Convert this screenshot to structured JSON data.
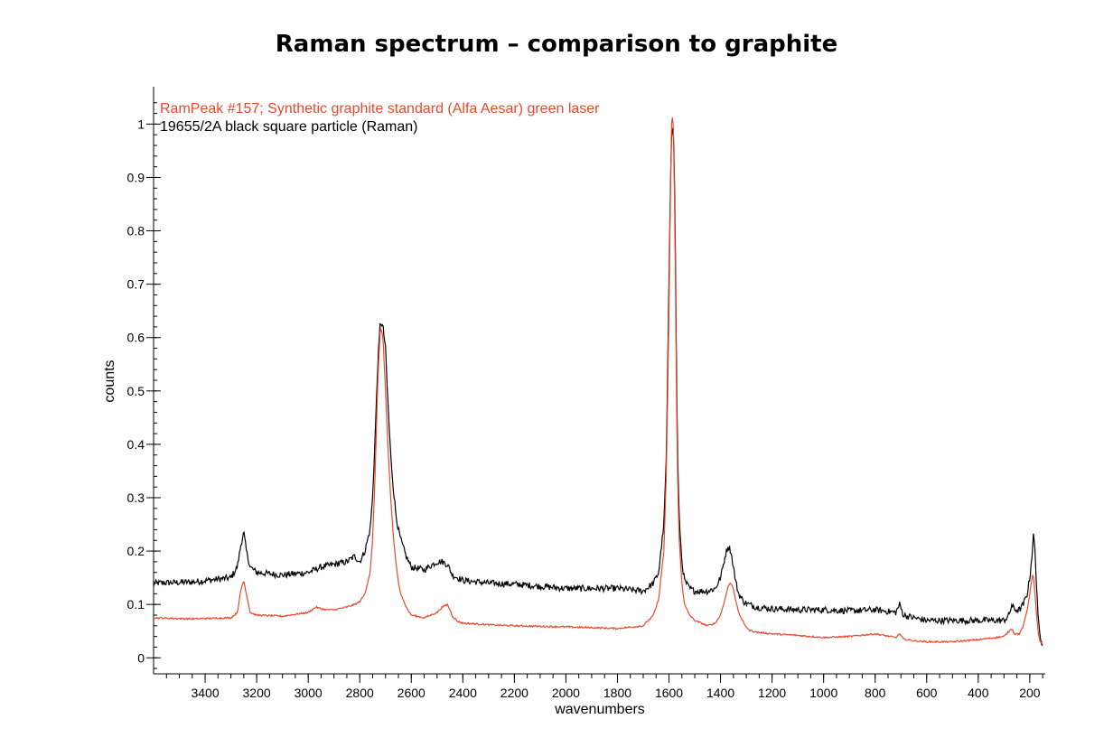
{
  "chart_data": {
    "type": "line",
    "title": "Raman spectrum – comparison to graphite",
    "xlabel": "wavenumbers",
    "ylabel": "counts",
    "x_reversed": true,
    "xlim": [
      3600,
      140
    ],
    "ylim": [
      -0.03,
      1.07
    ],
    "x_ticks": [
      3400,
      3200,
      3000,
      2800,
      2600,
      2400,
      2200,
      2000,
      1800,
      1600,
      1400,
      1200,
      1000,
      800,
      600,
      400,
      200
    ],
    "y_ticks": [
      0,
      0.1,
      0.2,
      0.3,
      0.4,
      0.5,
      0.6,
      0.7,
      0.8,
      0.9,
      1
    ],
    "legend_placement": "top-left",
    "series": [
      {
        "name": "RamPeak #157; Synthetic graphite standard (Alfa Aesar) green laser",
        "color": "#e8492c",
        "x": [
          3600,
          3450,
          3300,
          3275,
          3260,
          3250,
          3240,
          3225,
          3200,
          3100,
          3000,
          2970,
          2950,
          2930,
          2900,
          2850,
          2820,
          2800,
          2780,
          2760,
          2750,
          2740,
          2730,
          2720,
          2710,
          2700,
          2690,
          2680,
          2670,
          2660,
          2650,
          2640,
          2620,
          2600,
          2550,
          2500,
          2480,
          2460,
          2450,
          2440,
          2420,
          2400,
          2300,
          2200,
          2000,
          1800,
          1700,
          1660,
          1640,
          1620,
          1610,
          1600,
          1595,
          1590,
          1585,
          1580,
          1575,
          1570,
          1565,
          1560,
          1550,
          1540,
          1520,
          1500,
          1450,
          1420,
          1400,
          1380,
          1370,
          1360,
          1350,
          1340,
          1330,
          1310,
          1290,
          1260,
          1200,
          1100,
          1000,
          900,
          800,
          720,
          705,
          690,
          650,
          600,
          500,
          400,
          300,
          280,
          270,
          260,
          240,
          225,
          210,
          200,
          190,
          185,
          180,
          175,
          170,
          165,
          160,
          155,
          150
        ],
        "y": [
          0.075,
          0.073,
          0.075,
          0.085,
          0.13,
          0.145,
          0.12,
          0.085,
          0.08,
          0.078,
          0.085,
          0.095,
          0.092,
          0.09,
          0.09,
          0.095,
          0.1,
          0.105,
          0.12,
          0.16,
          0.22,
          0.35,
          0.52,
          0.62,
          0.6,
          0.5,
          0.39,
          0.3,
          0.23,
          0.18,
          0.14,
          0.12,
          0.095,
          0.08,
          0.075,
          0.085,
          0.095,
          0.1,
          0.09,
          0.078,
          0.068,
          0.065,
          0.062,
          0.06,
          0.058,
          0.055,
          0.06,
          0.08,
          0.11,
          0.2,
          0.35,
          0.65,
          0.85,
          1.0,
          1.02,
          0.92,
          0.7,
          0.45,
          0.3,
          0.22,
          0.14,
          0.1,
          0.08,
          0.07,
          0.06,
          0.065,
          0.08,
          0.115,
          0.135,
          0.14,
          0.13,
          0.105,
          0.085,
          0.065,
          0.052,
          0.048,
          0.045,
          0.042,
          0.038,
          0.04,
          0.045,
          0.038,
          0.045,
          0.035,
          0.032,
          0.03,
          0.03,
          0.034,
          0.04,
          0.05,
          0.055,
          0.045,
          0.045,
          0.06,
          0.09,
          0.12,
          0.155,
          0.15,
          0.12,
          0.09,
          0.06,
          0.04,
          0.03,
          0.028,
          0.03
        ]
      },
      {
        "name": "19655/2A black square particle (Raman)",
        "color": "#000000",
        "x": [
          3600,
          3450,
          3300,
          3275,
          3260,
          3250,
          3240,
          3225,
          3200,
          3100,
          3000,
          2950,
          2900,
          2850,
          2820,
          2800,
          2780,
          2760,
          2750,
          2740,
          2730,
          2720,
          2710,
          2700,
          2690,
          2680,
          2670,
          2660,
          2650,
          2640,
          2620,
          2600,
          2550,
          2500,
          2480,
          2460,
          2450,
          2440,
          2420,
          2400,
          2300,
          2200,
          2000,
          1800,
          1700,
          1660,
          1640,
          1620,
          1610,
          1600,
          1595,
          1590,
          1585,
          1580,
          1575,
          1570,
          1565,
          1560,
          1550,
          1540,
          1520,
          1500,
          1450,
          1420,
          1400,
          1380,
          1370,
          1360,
          1350,
          1340,
          1330,
          1310,
          1290,
          1260,
          1200,
          1100,
          1000,
          900,
          800,
          720,
          705,
          690,
          650,
          600,
          500,
          400,
          300,
          280,
          270,
          260,
          240,
          225,
          210,
          200,
          190,
          185,
          180,
          175,
          170,
          165,
          160,
          155,
          150
        ],
        "y": [
          0.14,
          0.142,
          0.15,
          0.17,
          0.215,
          0.235,
          0.2,
          0.17,
          0.16,
          0.155,
          0.16,
          0.17,
          0.175,
          0.18,
          0.19,
          0.18,
          0.2,
          0.24,
          0.3,
          0.42,
          0.55,
          0.63,
          0.62,
          0.58,
          0.47,
          0.38,
          0.32,
          0.27,
          0.24,
          0.22,
          0.19,
          0.17,
          0.165,
          0.18,
          0.18,
          0.175,
          0.165,
          0.155,
          0.15,
          0.145,
          0.14,
          0.138,
          0.13,
          0.13,
          0.125,
          0.14,
          0.16,
          0.25,
          0.38,
          0.7,
          0.88,
          0.98,
          1.0,
          0.95,
          0.75,
          0.5,
          0.34,
          0.26,
          0.18,
          0.145,
          0.13,
          0.125,
          0.125,
          0.13,
          0.15,
          0.195,
          0.21,
          0.2,
          0.17,
          0.14,
          0.12,
          0.105,
          0.1,
          0.095,
          0.092,
          0.09,
          0.09,
          0.088,
          0.09,
          0.085,
          0.1,
          0.08,
          0.075,
          0.07,
          0.07,
          0.07,
          0.07,
          0.08,
          0.1,
          0.09,
          0.09,
          0.1,
          0.12,
          0.15,
          0.2,
          0.235,
          0.2,
          0.15,
          0.1,
          0.06,
          0.035,
          0.028,
          0.03
        ]
      }
    ]
  }
}
